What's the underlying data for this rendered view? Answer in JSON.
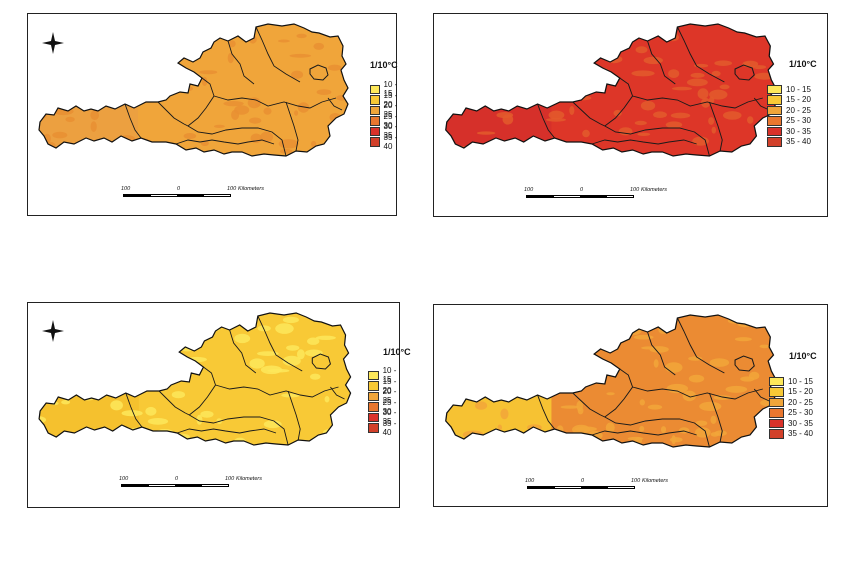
{
  "legend": {
    "title": "1/10°C",
    "classes": [
      {
        "label": "10 - 15",
        "color": "#fde85a"
      },
      {
        "label": "15 - 20",
        "color": "#f8c936"
      },
      {
        "label": "20 - 25",
        "color": "#f0a53a"
      },
      {
        "label": "25 - 30",
        "color": "#e9772f"
      },
      {
        "label": "30 - 35",
        "color": "#d9322a"
      },
      {
        "label": "35 - 40",
        "color": "#d2402a"
      }
    ]
  },
  "scalebar": {
    "left": "100",
    "mid": "0",
    "right": "100",
    "unit": "Kilometers"
  },
  "panels": [
    {
      "id": "p1",
      "has_compass": true,
      "main_color": "#f0a53a",
      "mottle_color": "#e98f32",
      "west_color": "#eca040"
    },
    {
      "id": "p2",
      "has_compass": false,
      "main_color": "#dd3628",
      "mottle_color": "#e35a2c",
      "west_color": "#d6302a"
    },
    {
      "id": "p3",
      "has_compass": true,
      "main_color": "#f8c936",
      "mottle_color": "#fde85a",
      "west_color": "#f5c12e"
    },
    {
      "id": "p4",
      "has_compass": false,
      "main_color": "#eb8b33",
      "mottle_color": "#f2a63a",
      "west_color": "#f6c233"
    }
  ]
}
